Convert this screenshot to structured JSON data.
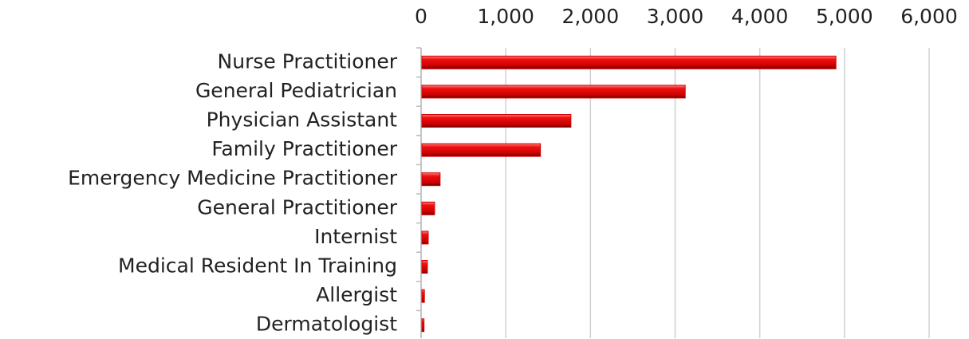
{
  "chart_data": {
    "type": "bar",
    "orientation": "horizontal",
    "categories": [
      "Nurse Practitioner",
      "General Pediatrician",
      "Physician Assistant",
      "Family Practitioner",
      "Emergency Medicine Practitioner",
      "General Practitioner",
      "Internist",
      "Medical Resident In Training",
      "Allergist",
      "Dermatologist"
    ],
    "values": [
      4890,
      3110,
      1760,
      1400,
      215,
      150,
      75,
      65,
      30,
      25
    ],
    "color": "#d40000",
    "xlim": [
      0,
      6000
    ],
    "xticks": [
      0,
      {
        "value": 1000,
        "label": "1,000"
      },
      {
        "value": 2000,
        "label": "2,000"
      },
      {
        "value": 3000,
        "label": "3,000"
      },
      {
        "value": 4000,
        "label": "4,000"
      },
      {
        "value": 5000,
        "label": "5,000"
      },
      {
        "value": 6000,
        "label": "6,000"
      }
    ],
    "grid": true
  }
}
